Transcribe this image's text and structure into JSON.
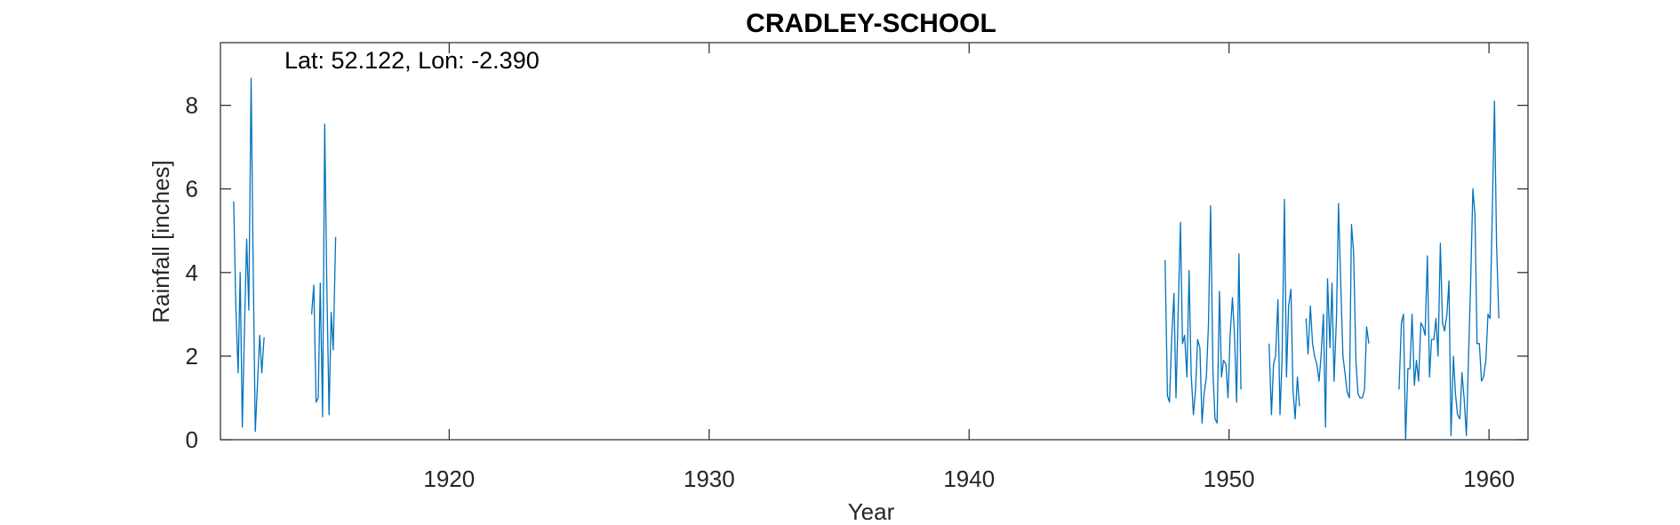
{
  "chart_data": {
    "type": "line",
    "title": "CRADLEY-SCHOOL",
    "annotation": "Lat: 52.122, Lon: -2.390",
    "xlabel": "Year",
    "ylabel": "Rainfall [inches]",
    "xlim": [
      1911.2,
      1961.5
    ],
    "ylim": [
      0,
      9.5
    ],
    "xticks": [
      1920,
      1930,
      1940,
      1950,
      1960
    ],
    "yticks": [
      0,
      2,
      4,
      6,
      8
    ],
    "grid": false,
    "line_color": "#0072BD",
    "series": [
      {
        "segments": [
          [
            [
              1911.71,
              5.7
            ],
            [
              1911.79,
              3.2
            ],
            [
              1911.88,
              1.6
            ],
            [
              1911.96,
              4.0
            ],
            [
              1912.04,
              0.3
            ],
            [
              1912.13,
              2.8
            ],
            [
              1912.21,
              4.8
            ],
            [
              1912.29,
              3.1
            ],
            [
              1912.38,
              8.65
            ],
            [
              1912.46,
              4.2
            ],
            [
              1912.54,
              0.2
            ],
            [
              1912.63,
              1.4
            ],
            [
              1912.71,
              2.5
            ],
            [
              1912.79,
              1.6
            ],
            [
              1912.88,
              2.45
            ]
          ],
          [
            [
              1914.71,
              3.0
            ],
            [
              1914.79,
              3.7
            ],
            [
              1914.88,
              0.9
            ],
            [
              1914.96,
              1.0
            ],
            [
              1915.04,
              3.75
            ],
            [
              1915.13,
              0.55
            ],
            [
              1915.21,
              7.55
            ],
            [
              1915.29,
              3.8
            ],
            [
              1915.38,
              0.6
            ],
            [
              1915.46,
              3.05
            ],
            [
              1915.54,
              2.15
            ],
            [
              1915.63,
              4.85
            ]
          ],
          [
            [
              1947.54,
              4.3
            ],
            [
              1947.63,
              1.05
            ],
            [
              1947.71,
              0.9
            ],
            [
              1947.79,
              2.4
            ],
            [
              1947.88,
              3.5
            ],
            [
              1947.96,
              1.0
            ],
            [
              1948.04,
              3.0
            ],
            [
              1948.13,
              5.2
            ],
            [
              1948.21,
              2.3
            ],
            [
              1948.29,
              2.5
            ],
            [
              1948.38,
              1.5
            ],
            [
              1948.46,
              4.05
            ],
            [
              1948.54,
              1.6
            ],
            [
              1948.63,
              0.6
            ],
            [
              1948.71,
              1.2
            ],
            [
              1948.79,
              2.4
            ],
            [
              1948.88,
              2.2
            ],
            [
              1948.96,
              0.4
            ],
            [
              1949.04,
              1.1
            ],
            [
              1949.13,
              1.5
            ],
            [
              1949.21,
              2.8
            ],
            [
              1949.29,
              5.6
            ],
            [
              1949.38,
              1.6
            ],
            [
              1949.46,
              0.5
            ],
            [
              1949.54,
              0.4
            ],
            [
              1949.63,
              3.55
            ],
            [
              1949.71,
              1.5
            ],
            [
              1949.79,
              1.9
            ],
            [
              1949.88,
              1.8
            ],
            [
              1949.96,
              1.0
            ],
            [
              1950.04,
              2.5
            ],
            [
              1950.13,
              3.4
            ],
            [
              1950.21,
              2.5
            ],
            [
              1950.29,
              0.9
            ],
            [
              1950.38,
              4.45
            ],
            [
              1950.46,
              1.2
            ]
          ],
          [
            [
              1951.54,
              2.3
            ],
            [
              1951.63,
              0.6
            ],
            [
              1951.71,
              1.8
            ],
            [
              1951.79,
              2.0
            ],
            [
              1951.88,
              3.35
            ],
            [
              1951.96,
              0.6
            ],
            [
              1952.04,
              1.9
            ],
            [
              1952.13,
              5.75
            ],
            [
              1952.21,
              1.5
            ],
            [
              1952.29,
              3.2
            ],
            [
              1952.38,
              3.6
            ],
            [
              1952.46,
              1.2
            ],
            [
              1952.54,
              0.5
            ],
            [
              1952.63,
              1.5
            ],
            [
              1952.71,
              0.8
            ]
          ],
          [
            [
              1952.96,
              2.9
            ],
            [
              1953.04,
              2.05
            ],
            [
              1953.13,
              3.2
            ],
            [
              1953.21,
              2.3
            ],
            [
              1953.29,
              2.0
            ],
            [
              1953.38,
              1.8
            ],
            [
              1953.46,
              1.4
            ],
            [
              1953.54,
              2.0
            ],
            [
              1953.63,
              3.0
            ],
            [
              1953.71,
              0.3
            ],
            [
              1953.79,
              3.85
            ],
            [
              1953.88,
              2.2
            ],
            [
              1953.96,
              3.75
            ],
            [
              1954.04,
              1.4
            ],
            [
              1954.13,
              2.9
            ],
            [
              1954.21,
              5.65
            ],
            [
              1954.29,
              3.9
            ],
            [
              1954.38,
              2.0
            ],
            [
              1954.46,
              1.6
            ],
            [
              1954.54,
              1.15
            ],
            [
              1954.63,
              1.0
            ],
            [
              1954.71,
              5.15
            ],
            [
              1954.79,
              4.5
            ],
            [
              1954.88,
              1.9
            ],
            [
              1954.96,
              1.1
            ],
            [
              1955.04,
              1.0
            ],
            [
              1955.13,
              1.0
            ],
            [
              1955.21,
              1.2
            ],
            [
              1955.29,
              2.7
            ],
            [
              1955.38,
              2.3
            ]
          ],
          [
            [
              1956.54,
              1.2
            ],
            [
              1956.63,
              2.8
            ],
            [
              1956.71,
              3.0
            ],
            [
              1956.79,
              0.0
            ],
            [
              1956.88,
              1.7
            ],
            [
              1956.96,
              1.7
            ],
            [
              1957.04,
              3.0
            ],
            [
              1957.13,
              1.3
            ],
            [
              1957.21,
              1.9
            ],
            [
              1957.29,
              1.4
            ],
            [
              1957.38,
              2.8
            ],
            [
              1957.46,
              2.7
            ],
            [
              1957.54,
              2.5
            ],
            [
              1957.63,
              4.4
            ],
            [
              1957.71,
              1.5
            ],
            [
              1957.79,
              2.4
            ],
            [
              1957.88,
              2.4
            ],
            [
              1957.96,
              2.9
            ],
            [
              1958.04,
              2.0
            ],
            [
              1958.13,
              4.7
            ],
            [
              1958.21,
              2.8
            ],
            [
              1958.29,
              2.6
            ],
            [
              1958.38,
              3.0
            ],
            [
              1958.46,
              3.8
            ],
            [
              1958.54,
              0.1
            ],
            [
              1958.63,
              2.0
            ],
            [
              1958.71,
              1.1
            ],
            [
              1958.79,
              0.6
            ],
            [
              1958.88,
              0.5
            ],
            [
              1958.96,
              1.6
            ],
            [
              1959.04,
              1.0
            ],
            [
              1959.13,
              0.1
            ],
            [
              1959.21,
              1.9
            ],
            [
              1959.29,
              3.7
            ],
            [
              1959.38,
              6.0
            ],
            [
              1959.46,
              5.4
            ],
            [
              1959.54,
              2.3
            ],
            [
              1959.63,
              2.3
            ],
            [
              1959.71,
              1.4
            ],
            [
              1959.79,
              1.5
            ],
            [
              1959.88,
              1.9
            ],
            [
              1959.96,
              3.0
            ],
            [
              1960.04,
              2.9
            ],
            [
              1960.13,
              5.5
            ],
            [
              1960.21,
              8.1
            ],
            [
              1960.29,
              4.7
            ],
            [
              1960.38,
              2.9
            ]
          ]
        ]
      }
    ]
  }
}
